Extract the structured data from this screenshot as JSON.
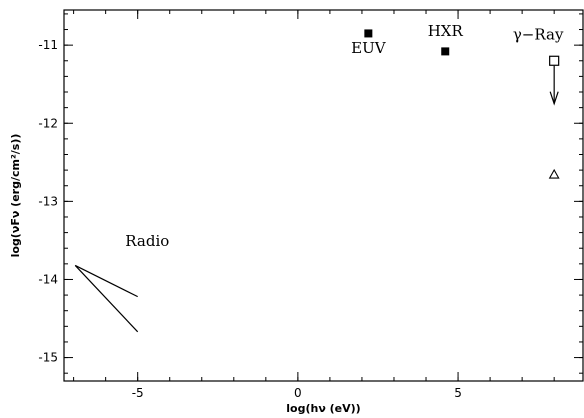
{
  "chart_data": {
    "type": "scatter",
    "xlabel": "log(hν (eV))",
    "ylabel": "log(νFν (erg/cm²/s))",
    "xlim": [
      -7.3,
      8.9
    ],
    "ylim": [
      -15.3,
      -10.55
    ],
    "grid": false,
    "x_ticks": [
      -5,
      0,
      5
    ],
    "y_ticks": [
      -11,
      -12,
      -13,
      -14,
      -15
    ],
    "x_tick_labels": [
      "-5",
      "0",
      "5"
    ],
    "y_tick_labels": [
      "-11",
      "-12",
      "-13",
      "-14",
      "-15"
    ],
    "series": [
      {
        "marker": "filled-square",
        "points": [
          {
            "x": 2.2,
            "y": -10.85
          },
          {
            "x": 4.6,
            "y": -11.08
          }
        ]
      },
      {
        "marker": "open-square",
        "points": [
          {
            "x": 8.0,
            "y": -11.2
          }
        ]
      },
      {
        "marker": "open-triangle",
        "points": [
          {
            "x": 8.0,
            "y": -12.65
          }
        ]
      }
    ],
    "upper_limit_arrow": {
      "x": 8.0,
      "y_from": -11.2,
      "y_to": -11.75
    },
    "radio_lines": [
      {
        "x": [
          -6.95,
          -5.0
        ],
        "y": [
          -13.82,
          -14.22
        ]
      },
      {
        "x": [
          -6.95,
          -5.0
        ],
        "y": [
          -13.82,
          -14.67
        ]
      }
    ],
    "annotations": [
      {
        "text": "EUV",
        "x": 2.2,
        "y": -11.1
      },
      {
        "text": "HXR",
        "x": 4.6,
        "y": -10.88
      },
      {
        "text": "γ−Ray",
        "x": 7.5,
        "y": -10.93
      },
      {
        "text": "Radio",
        "x": -4.7,
        "y": -13.57
      }
    ]
  }
}
